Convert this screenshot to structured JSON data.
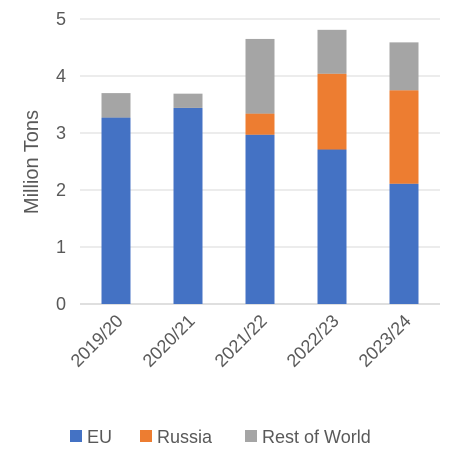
{
  "chart_data": {
    "type": "bar",
    "stacked": true,
    "title": "",
    "xlabel": "",
    "ylabel": "Million Tons",
    "ylim": [
      0,
      5
    ],
    "yticks": [
      "0",
      "1",
      "2",
      "3",
      "4",
      "5"
    ],
    "grid": true,
    "legend_position": "bottom",
    "categories": [
      "2019/20",
      "2020/21",
      "2021/22",
      "2022/23",
      "2023/24"
    ],
    "series": [
      {
        "name": "EU",
        "color": "#4472c4",
        "values": [
          3.27,
          3.44,
          2.97,
          2.71,
          2.11
        ]
      },
      {
        "name": "Russia",
        "color": "#ed7d31",
        "values": [
          0.0,
          0.0,
          0.37,
          1.33,
          1.64
        ]
      },
      {
        "name": "Rest of World",
        "color": "#a5a5a5",
        "values": [
          0.43,
          0.25,
          1.31,
          0.77,
          0.84
        ]
      }
    ]
  }
}
